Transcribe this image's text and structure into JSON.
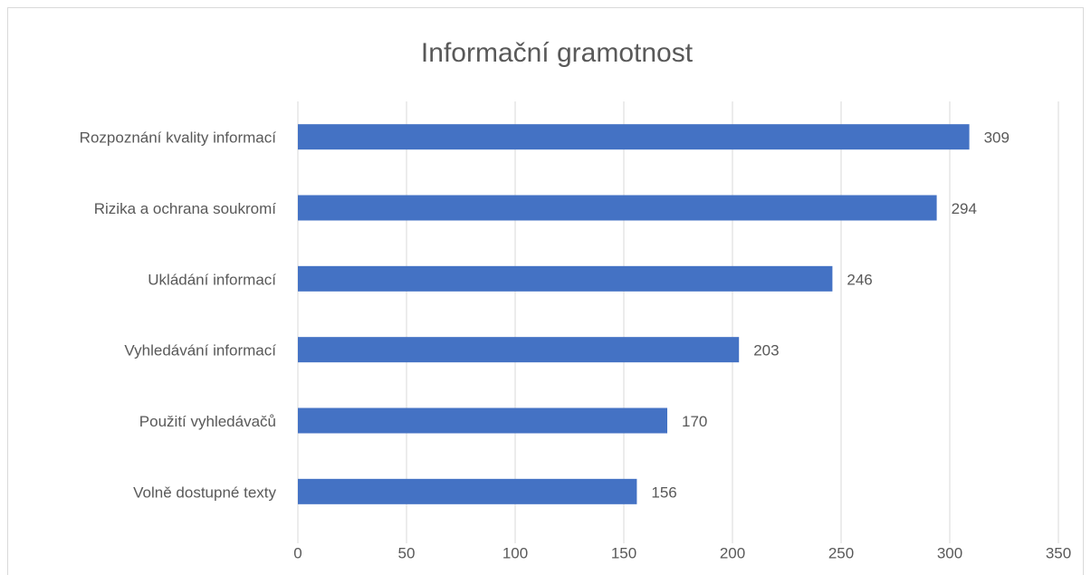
{
  "chart_data": {
    "type": "bar",
    "title": "Informační gramotnost",
    "categories": [
      "Rozpoznání kvality informací",
      "Rizika a ochrana soukromí",
      "Ukládání informací",
      "Vyhledávání informací",
      "Použití vyhledávačů",
      "Volně dostupné texty"
    ],
    "values": [
      309,
      294,
      246,
      203,
      170,
      156
    ],
    "color": "#4472c4",
    "xlim": [
      0,
      350
    ],
    "xticks": [
      0,
      50,
      100,
      150,
      200,
      250,
      300,
      350
    ],
    "grid": true
  }
}
